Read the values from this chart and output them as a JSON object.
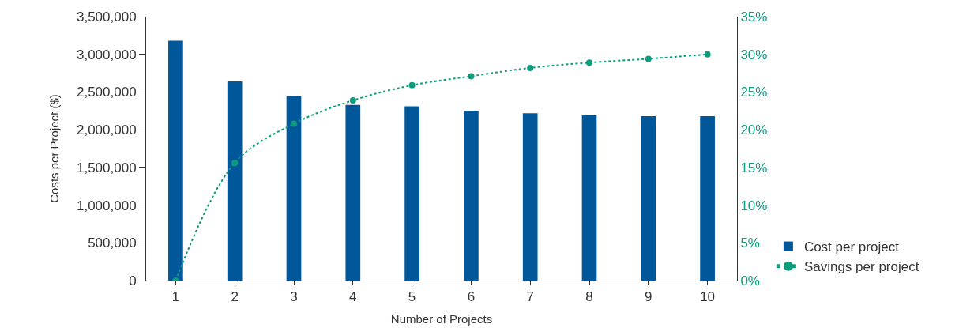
{
  "chart_data": {
    "type": "bar",
    "xlabel": "Number of Projects",
    "ylabel": "Costs per Project ($)",
    "categories": [
      "1",
      "2",
      "3",
      "4",
      "5",
      "6",
      "7",
      "8",
      "9",
      "10"
    ],
    "series": [
      {
        "name": "Cost per project",
        "color": "#00589a",
        "values": [
          3180000,
          2640000,
          2450000,
          2330000,
          2310000,
          2250000,
          2220000,
          2190000,
          2180000,
          2180000
        ]
      },
      {
        "name": "Savings per project",
        "type": "line",
        "axis": "y2",
        "color": "#0c9c7e",
        "marker": "circle",
        "line_style": "dotted",
        "values": [
          0,
          15.6,
          20.8,
          23.9,
          25.9,
          27.1,
          28.2,
          28.9,
          29.4,
          30
        ]
      }
    ],
    "ylim": [
      0,
      3500000
    ],
    "yticks": [
      {
        "value": 0,
        "label": "0"
      },
      {
        "value": 500000,
        "label": "500,000"
      },
      {
        "value": 1000000,
        "label": "1,000,000"
      },
      {
        "value": 1500000,
        "label": "1,500,000"
      },
      {
        "value": 2000000,
        "label": "2,000,000"
      },
      {
        "value": 2500000,
        "label": "2,500,000"
      },
      {
        "value": 3000000,
        "label": "3,000,000"
      },
      {
        "value": 3500000,
        "label": "3,500,000"
      }
    ],
    "y2lim": [
      0,
      35
    ],
    "y2ticks": [
      {
        "value": 0,
        "label": "0%"
      },
      {
        "value": 5,
        "label": "5%"
      },
      {
        "value": 10,
        "label": "10%"
      },
      {
        "value": 15,
        "label": "15%"
      },
      {
        "value": 20,
        "label": "20%"
      },
      {
        "value": 25,
        "label": "25%"
      },
      {
        "value": 30,
        "label": "30%"
      },
      {
        "value": 35,
        "label": "35%"
      }
    ],
    "grid": false,
    "legend": "bottom right"
  }
}
